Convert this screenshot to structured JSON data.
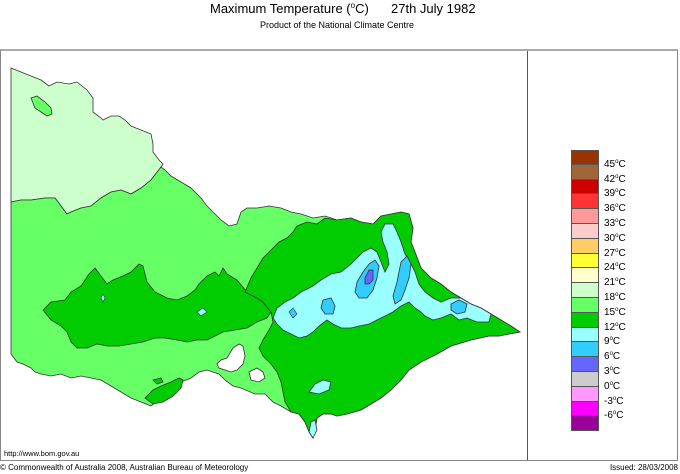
{
  "header": {
    "title": "Maximum Temperature (",
    "title_unit_sup": "o",
    "title_unit_end": "C)",
    "date": "27th July 1982",
    "subtitle": "Product of the National Climate Centre"
  },
  "map": {
    "region": "Victoria, Australia",
    "url_text": "http://www.bom.gov.au",
    "colors": {
      "outside": "#ffffff",
      "band_18_21": "#ccffcc",
      "band_15_18": "#66ff66",
      "band_12_15": "#00cc00",
      "band_9_12": "#99ffff",
      "band_6_9": "#33ccff",
      "band_3_6": "#6666ff",
      "outline": "#333333"
    }
  },
  "legend": {
    "items": [
      {
        "color": "#993300"
      },
      {
        "color": "#a0663a",
        "label": "45",
        "unit": "C"
      },
      {
        "color": "#cc0000",
        "label": "42",
        "unit": "C"
      },
      {
        "color": "#ff3333",
        "label": "39",
        "unit": "C"
      },
      {
        "color": "#ff9999",
        "label": "36",
        "unit": "C"
      },
      {
        "color": "#ffcccc",
        "label": "33",
        "unit": "C"
      },
      {
        "color": "#ffcc66",
        "label": "30",
        "unit": "C"
      },
      {
        "color": "#ffff33",
        "label": "27",
        "unit": "C"
      },
      {
        "color": "#ffffcc",
        "label": "24",
        "unit": "C"
      },
      {
        "color": "#ccffcc",
        "label": "21",
        "unit": "C"
      },
      {
        "color": "#66ff66",
        "label": "18",
        "unit": "C"
      },
      {
        "color": "#00cc00",
        "label": "15",
        "unit": "C"
      },
      {
        "color": "#99ffff",
        "label": "12",
        "unit": "C"
      },
      {
        "color": "#33ccff",
        "label": "9",
        "unit": "C"
      },
      {
        "color": "#6666ff",
        "label": "6",
        "unit": "C"
      },
      {
        "color": "#cccccc",
        "label": "3",
        "unit": "C"
      },
      {
        "color": "#ff99ff",
        "label": "0",
        "unit": "C"
      },
      {
        "color": "#ff00ff",
        "label": "-3",
        "unit": "C"
      },
      {
        "color": "#990099",
        "label": "-6",
        "unit": "C"
      }
    ]
  },
  "footer": {
    "copyright": "© Commonwealth of Australia 2008, Australian Bureau of Meteorology",
    "issued": "Issued: 28/03/2008"
  }
}
